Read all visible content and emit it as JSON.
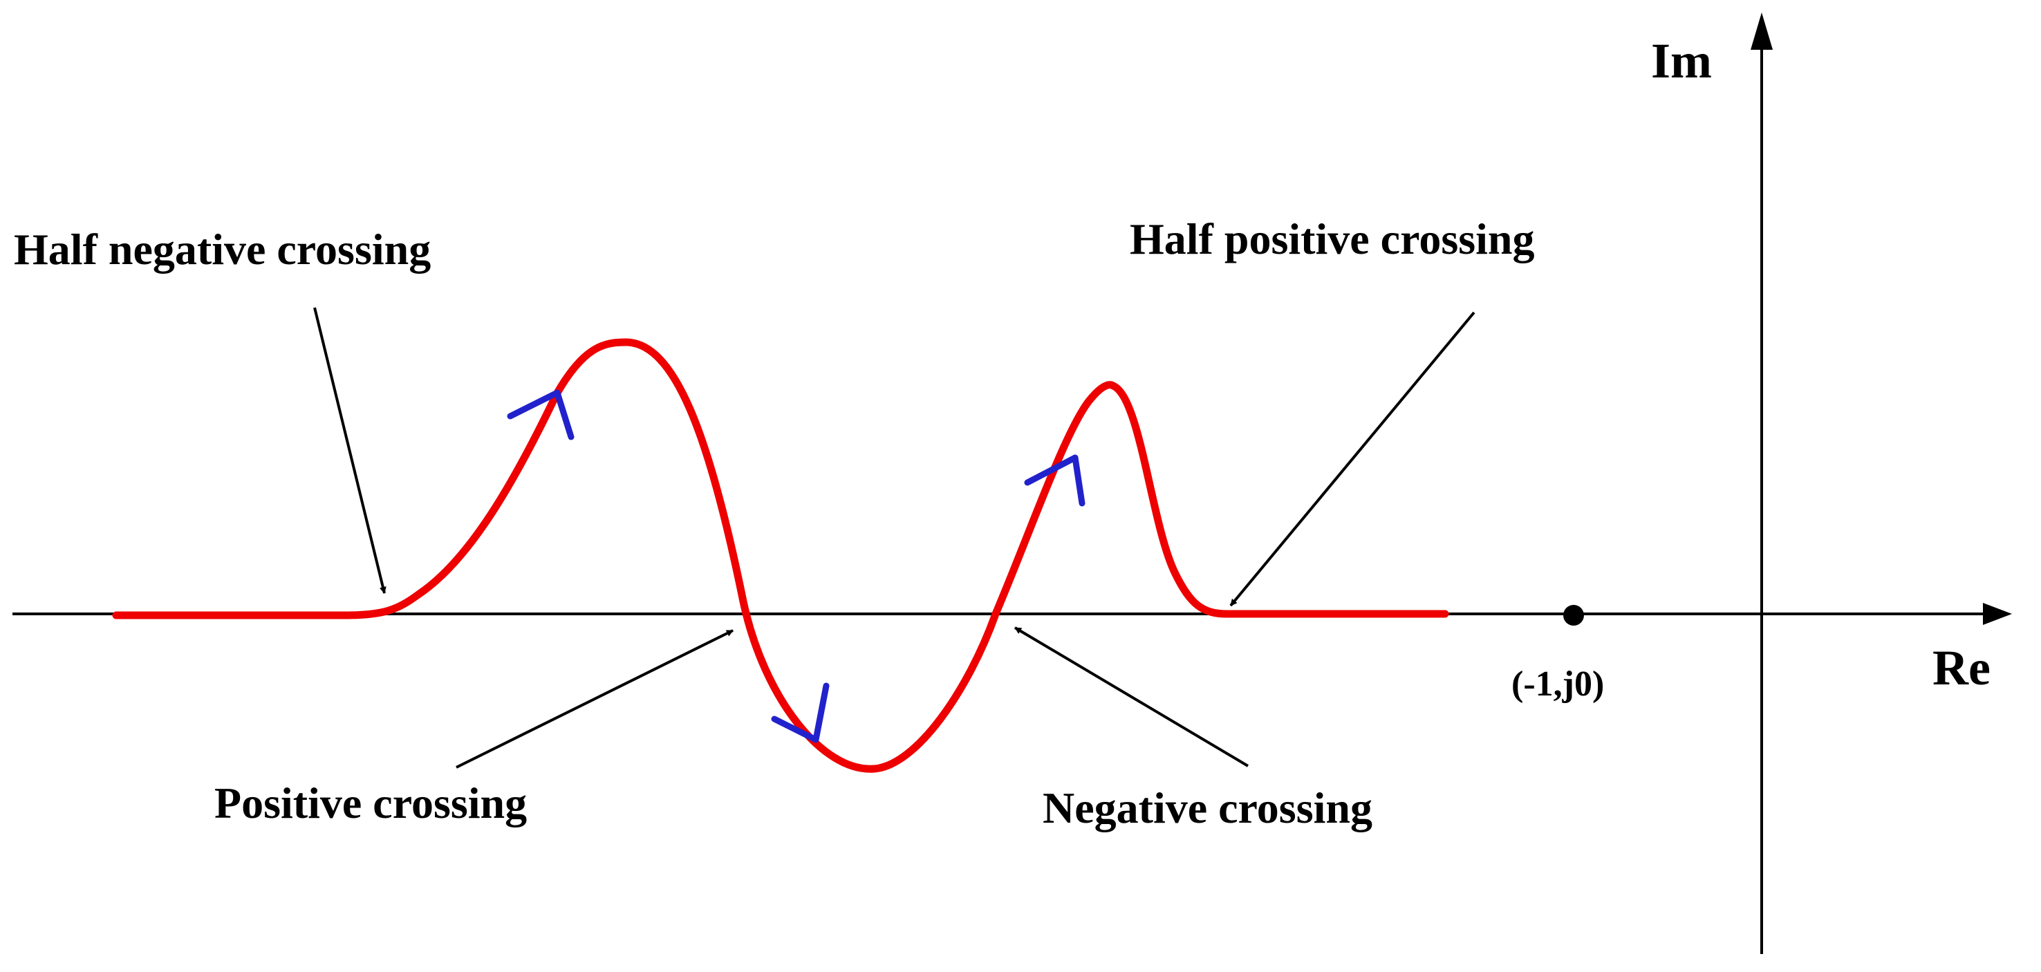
{
  "axes": {
    "x_label": "Re",
    "y_label": "Im",
    "critical_point_label": "(-1,j0)"
  },
  "annotations": {
    "half_negative": "Half negative crossing",
    "half_positive": "Half positive crossing",
    "positive": "Positive crossing",
    "negative": "Negative crossing"
  },
  "colors": {
    "curve": "#ee0000",
    "direction_arrows": "#2222cc",
    "axes": "#000000"
  }
}
